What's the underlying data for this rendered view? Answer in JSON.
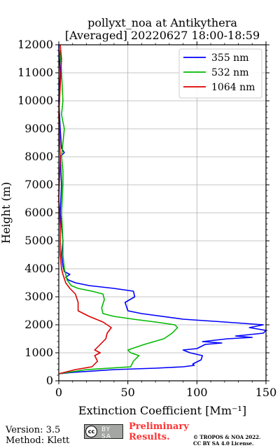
{
  "chart_data": {
    "type": "line",
    "title": [
      "pollyxt_noa at Antikythera",
      "[Averaged] 20220627 18:00-18:59"
    ],
    "xlabel": "Extinction Coefficient [Mm⁻¹]",
    "ylabel": "Height (m)",
    "xlim": [
      0,
      150
    ],
    "ylim": [
      0,
      12000
    ],
    "xticks": [
      0,
      50,
      100,
      150
    ],
    "yticks": [
      0,
      1000,
      2000,
      3000,
      4000,
      5000,
      6000,
      7000,
      8000,
      9000,
      10000,
      11000,
      12000
    ],
    "grid": true,
    "legend_position": "top-right",
    "series": [
      {
        "name": "355 nm",
        "color": "#0000ff",
        "points": [
          [
            0,
            250
          ],
          [
            10,
            300
          ],
          [
            40,
            400
          ],
          [
            70,
            450
          ],
          [
            90,
            500
          ],
          [
            98,
            550
          ],
          [
            97,
            600
          ],
          [
            103,
            750
          ],
          [
            104,
            900
          ],
          [
            95,
            1000
          ],
          [
            90,
            1100
          ],
          [
            100,
            1150
          ],
          [
            106,
            1300
          ],
          [
            118,
            1350
          ],
          [
            104,
            1400
          ],
          [
            122,
            1500
          ],
          [
            140,
            1550
          ],
          [
            128,
            1600
          ],
          [
            148,
            1700
          ],
          [
            152,
            1800
          ],
          [
            138,
            1900
          ],
          [
            148,
            2000
          ],
          [
            120,
            2100
          ],
          [
            90,
            2200
          ],
          [
            60,
            2400
          ],
          [
            50,
            2500
          ],
          [
            48,
            2800
          ],
          [
            55,
            3000
          ],
          [
            54,
            3200
          ],
          [
            40,
            3300
          ],
          [
            22,
            3400
          ],
          [
            12,
            3500
          ],
          [
            7,
            3600
          ],
          [
            5,
            3700
          ],
          [
            8,
            3800
          ],
          [
            4,
            3900
          ],
          [
            3,
            4100
          ],
          [
            2,
            4500
          ],
          [
            3,
            5000
          ],
          [
            2,
            5500
          ],
          [
            1,
            6000
          ],
          [
            2,
            7000
          ],
          [
            1,
            8000
          ],
          [
            4,
            8150
          ],
          [
            2,
            8300
          ],
          [
            1,
            9000
          ],
          [
            0,
            10000
          ],
          [
            1,
            11000
          ],
          [
            0,
            12000
          ]
        ]
      },
      {
        "name": "532 nm",
        "color": "#00bb00",
        "points": [
          [
            0,
            250
          ],
          [
            20,
            400
          ],
          [
            52,
            500
          ],
          [
            54,
            700
          ],
          [
            58,
            900
          ],
          [
            52,
            1000
          ],
          [
            50,
            1100
          ],
          [
            62,
            1300
          ],
          [
            76,
            1500
          ],
          [
            82,
            1700
          ],
          [
            86,
            1900
          ],
          [
            84,
            2000
          ],
          [
            70,
            2100
          ],
          [
            54,
            2200
          ],
          [
            40,
            2300
          ],
          [
            32,
            2400
          ],
          [
            31,
            2600
          ],
          [
            33,
            2900
          ],
          [
            32,
            3100
          ],
          [
            24,
            3200
          ],
          [
            14,
            3300
          ],
          [
            9,
            3400
          ],
          [
            6,
            3600
          ],
          [
            5,
            3800
          ],
          [
            4,
            4000
          ],
          [
            3,
            4500
          ],
          [
            3,
            5000
          ],
          [
            2,
            6000
          ],
          [
            3,
            7000
          ],
          [
            3,
            7500
          ],
          [
            2,
            8000
          ],
          [
            3,
            8500
          ],
          [
            4,
            9000
          ],
          [
            2,
            9500
          ],
          [
            3,
            10000
          ],
          [
            2,
            11000
          ],
          [
            1,
            11800
          ]
        ]
      },
      {
        "name": "1064 nm",
        "color": "#dd0000",
        "points": [
          [
            0,
            250
          ],
          [
            12,
            400
          ],
          [
            24,
            500
          ],
          [
            28,
            700
          ],
          [
            26,
            900
          ],
          [
            30,
            1000
          ],
          [
            26,
            1100
          ],
          [
            30,
            1300
          ],
          [
            34,
            1500
          ],
          [
            35,
            1700
          ],
          [
            38,
            1900
          ],
          [
            32,
            2100
          ],
          [
            22,
            2300
          ],
          [
            14,
            2500
          ],
          [
            14,
            2800
          ],
          [
            12,
            3100
          ],
          [
            8,
            3300
          ],
          [
            5,
            3500
          ],
          [
            3,
            3800
          ],
          [
            2,
            4000
          ],
          [
            1,
            4500
          ],
          [
            1,
            5500
          ],
          [
            0,
            6500
          ],
          [
            1,
            8000
          ],
          [
            0,
            9500
          ],
          [
            1,
            10500
          ],
          [
            2,
            11500
          ],
          [
            1,
            12000
          ]
        ]
      }
    ]
  },
  "footer": {
    "version": "Version: 3.5",
    "method": "Method: Klett",
    "license_badge": "BY  SA",
    "preliminary": [
      "Preliminary",
      "Results."
    ],
    "copyright": [
      "© TROPOS & NOA 2022.",
      "CC BY SA 4.0 License."
    ]
  }
}
